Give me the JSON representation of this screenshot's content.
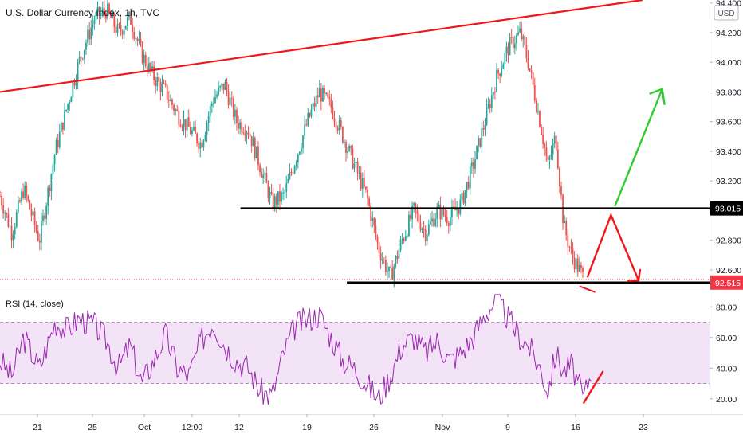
{
  "header": {
    "symbol_title": "U.S. Dollar Currency Index, 1h, TVC"
  },
  "price_axis": {
    "currency": "USD",
    "ticks": [
      "94.400",
      "94.200",
      "94.000",
      "93.800",
      "93.600",
      "93.400",
      "93.200",
      "92.800",
      "92.600"
    ],
    "badges": [
      {
        "label": "93.015",
        "value": 93.015,
        "color": "#000000"
      },
      {
        "label": "92.515",
        "value": 92.515,
        "color": "#f23645"
      }
    ]
  },
  "rsi": {
    "title": "RSI (14, close)",
    "ticks": [
      "80.00",
      "60.00",
      "40.00",
      "20.00"
    ],
    "band": {
      "upper": 70,
      "lower": 30,
      "color": "#9c27b0"
    }
  },
  "time_axis": {
    "labels": [
      "21",
      "25",
      "Oct",
      "12:00",
      "12",
      "19",
      "26",
      "Nov",
      "9",
      "16",
      "23"
    ]
  },
  "colors": {
    "candle_up": "#26a69a",
    "candle_down": "#ef5350",
    "trend_line": "#f0161a",
    "level_line": "#000000",
    "up_arrow": "#2ecc2e",
    "down_arrow": "#f0161a",
    "rsi_line": "#9c27b0",
    "rsi_band": "#f3e3f7"
  },
  "chart_data": {
    "type": "candlestick",
    "title": "U.S. Dollar Currency Index, 1h, TVC",
    "ylim": [
      92.46,
      94.42
    ],
    "levels": [
      93.015,
      92.515
    ],
    "price_path": [
      {
        "x": 0,
        "y": 93.1
      },
      {
        "x": 3,
        "y": 92.85
      },
      {
        "x": 6,
        "y": 93.15
      },
      {
        "x": 10,
        "y": 92.8
      },
      {
        "x": 14,
        "y": 93.4
      },
      {
        "x": 17,
        "y": 93.7
      },
      {
        "x": 20,
        "y": 94.0
      },
      {
        "x": 24,
        "y": 94.3
      },
      {
        "x": 27,
        "y": 94.35
      },
      {
        "x": 30,
        "y": 94.2
      },
      {
        "x": 33,
        "y": 94.3
      },
      {
        "x": 36,
        "y": 94.05
      },
      {
        "x": 39,
        "y": 93.9
      },
      {
        "x": 42,
        "y": 93.8
      },
      {
        "x": 45,
        "y": 93.65
      },
      {
        "x": 48,
        "y": 93.55
      },
      {
        "x": 51,
        "y": 93.45
      },
      {
        "x": 54,
        "y": 93.75
      },
      {
        "x": 57,
        "y": 93.85
      },
      {
        "x": 60,
        "y": 93.6
      },
      {
        "x": 63,
        "y": 93.55
      },
      {
        "x": 66,
        "y": 93.3
      },
      {
        "x": 69,
        "y": 93.05
      },
      {
        "x": 72,
        "y": 93.1
      },
      {
        "x": 75,
        "y": 93.35
      },
      {
        "x": 78,
        "y": 93.6
      },
      {
        "x": 81,
        "y": 93.8
      },
      {
        "x": 84,
        "y": 93.7
      },
      {
        "x": 87,
        "y": 93.5
      },
      {
        "x": 90,
        "y": 93.3
      },
      {
        "x": 93,
        "y": 93.1
      },
      {
        "x": 96,
        "y": 92.75
      },
      {
        "x": 99,
        "y": 92.55
      },
      {
        "x": 102,
        "y": 92.8
      },
      {
        "x": 105,
        "y": 93.0
      },
      {
        "x": 108,
        "y": 92.85
      },
      {
        "x": 111,
        "y": 93.0
      },
      {
        "x": 114,
        "y": 92.95
      },
      {
        "x": 117,
        "y": 93.05
      },
      {
        "x": 120,
        "y": 93.3
      },
      {
        "x": 123,
        "y": 93.6
      },
      {
        "x": 126,
        "y": 93.9
      },
      {
        "x": 129,
        "y": 94.1
      },
      {
        "x": 132,
        "y": 94.2
      },
      {
        "x": 134,
        "y": 94.0
      },
      {
        "x": 137,
        "y": 93.6
      },
      {
        "x": 139,
        "y": 93.3
      },
      {
        "x": 141,
        "y": 93.5
      },
      {
        "x": 143,
        "y": 92.9
      },
      {
        "x": 145,
        "y": 92.7
      },
      {
        "x": 148,
        "y": 92.55
      }
    ],
    "trend_line": [
      {
        "x": 0,
        "y": 93.8
      },
      {
        "x": 163,
        "y": 94.42
      }
    ],
    "projection": [
      {
        "x": 149,
        "y": 92.55
      },
      {
        "x": 155,
        "y": 92.97
      },
      {
        "x": 162,
        "y": 92.53
      }
    ],
    "projection_up": [
      {
        "x": 156,
        "y": 93.03
      },
      {
        "x": 168,
        "y": 93.82
      }
    ],
    "rsi_ylim": [
      10,
      90
    ],
    "rsi_path": [
      {
        "x": 0,
        "y": 45
      },
      {
        "x": 3,
        "y": 35
      },
      {
        "x": 6,
        "y": 60
      },
      {
        "x": 10,
        "y": 40
      },
      {
        "x": 14,
        "y": 70
      },
      {
        "x": 17,
        "y": 65
      },
      {
        "x": 20,
        "y": 72
      },
      {
        "x": 24,
        "y": 68
      },
      {
        "x": 27,
        "y": 58
      },
      {
        "x": 30,
        "y": 40
      },
      {
        "x": 33,
        "y": 55
      },
      {
        "x": 36,
        "y": 30
      },
      {
        "x": 39,
        "y": 45
      },
      {
        "x": 42,
        "y": 62
      },
      {
        "x": 45,
        "y": 40
      },
      {
        "x": 48,
        "y": 35
      },
      {
        "x": 51,
        "y": 58
      },
      {
        "x": 54,
        "y": 70
      },
      {
        "x": 57,
        "y": 55
      },
      {
        "x": 60,
        "y": 45
      },
      {
        "x": 63,
        "y": 40
      },
      {
        "x": 66,
        "y": 25
      },
      {
        "x": 69,
        "y": 22
      },
      {
        "x": 72,
        "y": 50
      },
      {
        "x": 75,
        "y": 68
      },
      {
        "x": 78,
        "y": 72
      },
      {
        "x": 81,
        "y": 75
      },
      {
        "x": 84,
        "y": 60
      },
      {
        "x": 87,
        "y": 45
      },
      {
        "x": 90,
        "y": 40
      },
      {
        "x": 93,
        "y": 30
      },
      {
        "x": 96,
        "y": 20
      },
      {
        "x": 99,
        "y": 35
      },
      {
        "x": 102,
        "y": 55
      },
      {
        "x": 105,
        "y": 60
      },
      {
        "x": 108,
        "y": 50
      },
      {
        "x": 111,
        "y": 58
      },
      {
        "x": 114,
        "y": 45
      },
      {
        "x": 117,
        "y": 50
      },
      {
        "x": 120,
        "y": 60
      },
      {
        "x": 123,
        "y": 75
      },
      {
        "x": 126,
        "y": 85
      },
      {
        "x": 129,
        "y": 72
      },
      {
        "x": 132,
        "y": 60
      },
      {
        "x": 134,
        "y": 55
      },
      {
        "x": 137,
        "y": 40
      },
      {
        "x": 139,
        "y": 25
      },
      {
        "x": 141,
        "y": 50
      },
      {
        "x": 143,
        "y": 38
      },
      {
        "x": 145,
        "y": 42
      },
      {
        "x": 148,
        "y": 20
      },
      {
        "x": 150,
        "y": 38
      }
    ],
    "rsi_divergence": [
      {
        "x": 148,
        "y": 17
      },
      {
        "x": 153,
        "y": 38
      }
    ]
  }
}
